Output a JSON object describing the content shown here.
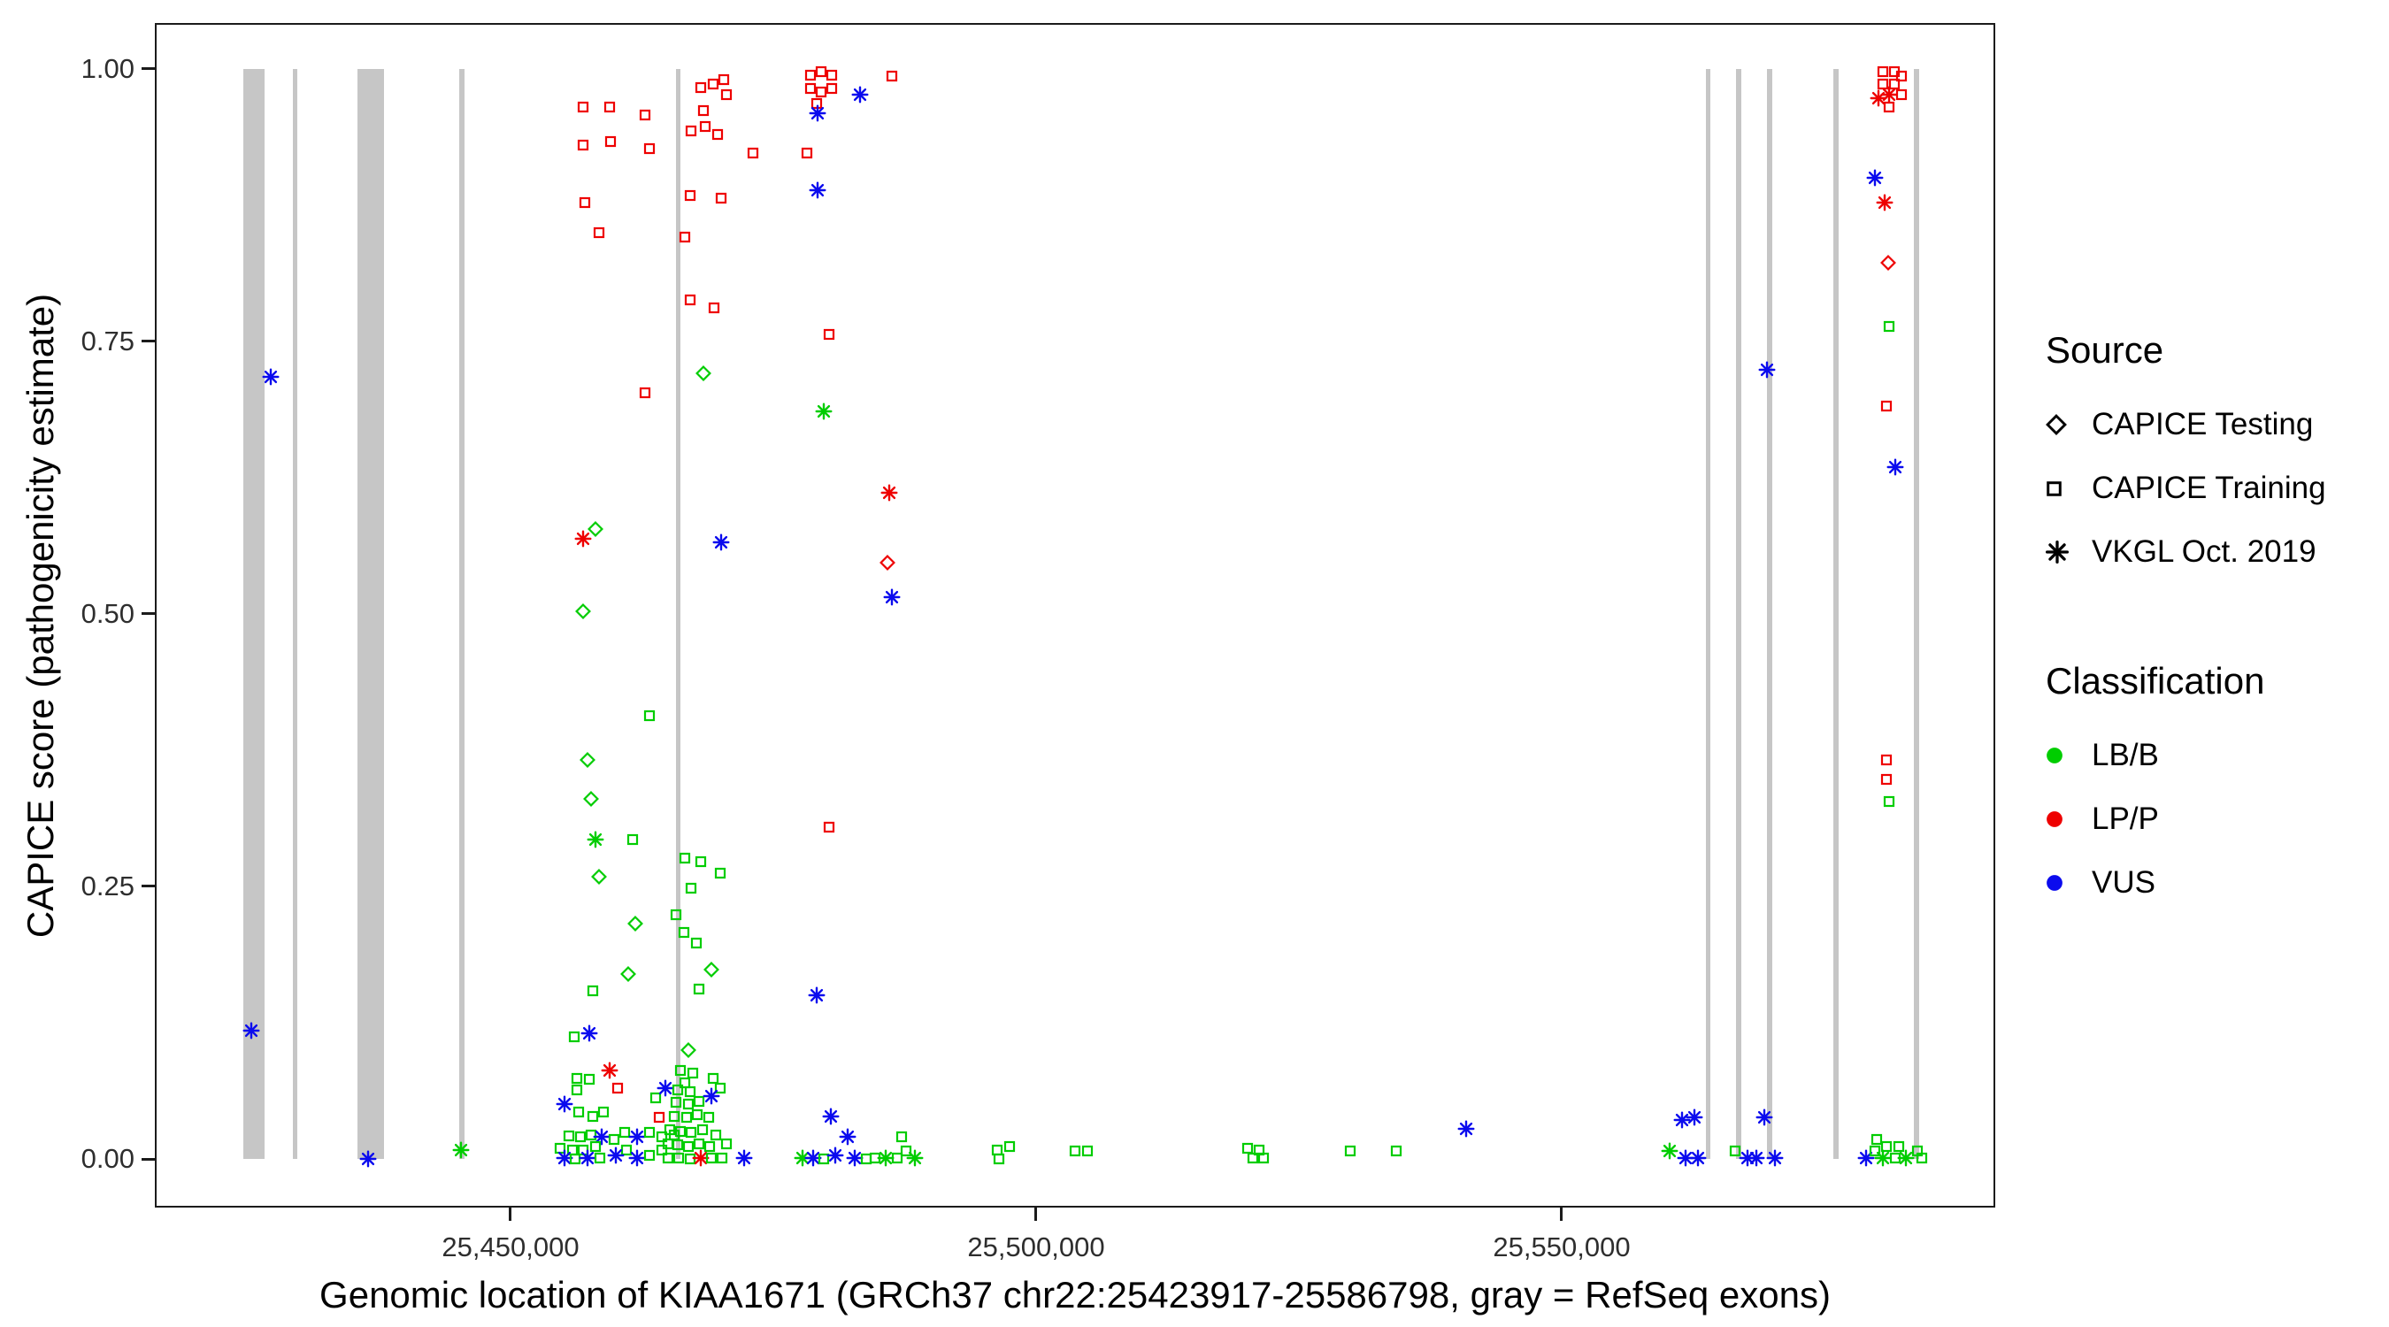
{
  "colors": {
    "g": "#00CD00",
    "r": "#EE0000",
    "b": "#0B0BEE",
    "exon": "#C6C6C6",
    "axis": "#1b1b1b"
  },
  "chart_data": {
    "type": "scatter",
    "title": "",
    "xlabel": "Genomic location of KIAA1671 (GRCh37 chr22:25423917-25586798, gray = RefSeq exons)",
    "ylabel": "CAPICE score (pathogenicity estimate)",
    "xlim": [
      25416162,
      25591246
    ],
    "ylim": [
      -0.0446,
      1.042
    ],
    "x_ticks": [
      {
        "value": 25450000,
        "label": "25,450,000"
      },
      {
        "value": 25500000,
        "label": "25,500,000"
      },
      {
        "value": 25550000,
        "label": "25,550,000"
      }
    ],
    "y_ticks": [
      {
        "value": 0.0,
        "label": "0.00"
      },
      {
        "value": 0.25,
        "label": "0.25"
      },
      {
        "value": 0.5,
        "label": "0.50"
      },
      {
        "value": 0.75,
        "label": "0.75"
      },
      {
        "value": 1.0,
        "label": "1.00"
      }
    ],
    "legend_position": "right",
    "shape_legend": {
      "title": "Source",
      "items": [
        {
          "shape": "diamond",
          "label": "CAPICE Testing"
        },
        {
          "shape": "square",
          "label": "CAPICE Training"
        },
        {
          "shape": "asterisk",
          "label": "VKGL Oct. 2019"
        }
      ]
    },
    "color_legend": {
      "title": "Classification",
      "items": [
        {
          "hex": "#00CD00",
          "label": "LB/B"
        },
        {
          "hex": "#EE0000",
          "label": "LP/P"
        },
        {
          "hex": "#0B0BEE",
          "label": "VUS"
        }
      ]
    },
    "refseq_exons": [
      [
        25424560,
        25426620
      ],
      [
        25429270,
        25429700
      ],
      [
        25435440,
        25437940
      ],
      [
        25445150,
        25445590
      ],
      [
        25465730,
        25466170
      ],
      [
        25563680,
        25564120
      ],
      [
        25566620,
        25567060
      ],
      [
        25569560,
        25570000
      ],
      [
        25575880,
        25576320
      ],
      [
        25583530,
        25583970
      ]
    ],
    "point_format": [
      "genomic_position",
      "capice_score",
      "shape: s=square(CAPICE Training) d=diamond(CAPICE Testing) a=asterisk(VKGL Oct. 2019)",
      "class: g=LB/B r=LP/P b=VUS"
    ],
    "points": [
      [
        25425300,
        0.118,
        "a",
        "b"
      ],
      [
        25427215,
        0.717,
        "a",
        "b"
      ],
      [
        25436476,
        0.0,
        "a",
        "b"
      ],
      [
        25445300,
        0.008,
        "a",
        "g"
      ],
      [
        25456900,
        0.965,
        "s",
        "r"
      ],
      [
        25459400,
        0.965,
        "s",
        "r"
      ],
      [
        25456900,
        0.93,
        "s",
        "r"
      ],
      [
        25459550,
        0.933,
        "s",
        "r"
      ],
      [
        25457050,
        0.877,
        "s",
        "r"
      ],
      [
        25458400,
        0.85,
        "s",
        "r"
      ],
      [
        25462800,
        0.958,
        "s",
        "r"
      ],
      [
        25463230,
        0.927,
        "s",
        "r"
      ],
      [
        25462800,
        0.703,
        "s",
        "r"
      ],
      [
        25467050,
        0.884,
        "s",
        "r"
      ],
      [
        25466600,
        0.846,
        "s",
        "r"
      ],
      [
        25467050,
        0.788,
        "s",
        "r"
      ],
      [
        25469400,
        0.781,
        "s",
        "r"
      ],
      [
        25467200,
        0.943,
        "s",
        "r"
      ],
      [
        25468500,
        0.947,
        "s",
        "r"
      ],
      [
        25469700,
        0.94,
        "s",
        "r"
      ],
      [
        25468100,
        0.983,
        "s",
        "r"
      ],
      [
        25469250,
        0.986,
        "s",
        "r"
      ],
      [
        25470300,
        0.99,
        "s",
        "r"
      ],
      [
        25470580,
        0.976,
        "s",
        "r"
      ],
      [
        25473080,
        0.923,
        "s",
        "r"
      ],
      [
        25470000,
        0.881,
        "s",
        "r"
      ],
      [
        25468380,
        0.962,
        "s",
        "r"
      ],
      [
        25468380,
        0.721,
        "d",
        "g"
      ],
      [
        25479840,
        0.686,
        "a",
        "g"
      ],
      [
        25478520,
        0.994,
        "s",
        "r"
      ],
      [
        25479550,
        0.997,
        "s",
        "r"
      ],
      [
        25480580,
        0.994,
        "s",
        "r"
      ],
      [
        25478520,
        0.982,
        "s",
        "r"
      ],
      [
        25479550,
        0.979,
        "s",
        "r"
      ],
      [
        25480580,
        0.982,
        "s",
        "r"
      ],
      [
        25479100,
        0.968,
        "s",
        "r"
      ],
      [
        25479250,
        0.959,
        "a",
        "b"
      ],
      [
        25483220,
        0.976,
        "a",
        "b"
      ],
      [
        25486310,
        0.993,
        "s",
        "r"
      ],
      [
        25478220,
        0.923,
        "s",
        "r"
      ],
      [
        25479250,
        0.889,
        "a",
        "b"
      ],
      [
        25480280,
        0.756,
        "s",
        "r"
      ],
      [
        25486020,
        0.611,
        "a",
        "r"
      ],
      [
        25485870,
        0.547,
        "d",
        "r"
      ],
      [
        25486310,
        0.515,
        "a",
        "b"
      ],
      [
        25480280,
        0.304,
        "s",
        "r"
      ],
      [
        25479100,
        0.15,
        "a",
        "b"
      ],
      [
        25458090,
        0.578,
        "d",
        "g"
      ],
      [
        25456910,
        0.569,
        "a",
        "r"
      ],
      [
        25470000,
        0.566,
        "a",
        "b"
      ],
      [
        25456910,
        0.502,
        "d",
        "g"
      ],
      [
        25457350,
        0.366,
        "d",
        "g"
      ],
      [
        25457650,
        0.33,
        "d",
        "g"
      ],
      [
        25458090,
        0.293,
        "a",
        "g"
      ],
      [
        25458380,
        0.259,
        "d",
        "g"
      ],
      [
        25461610,
        0.293,
        "s",
        "g"
      ],
      [
        25463230,
        0.407,
        "s",
        "g"
      ],
      [
        25461910,
        0.216,
        "d",
        "g"
      ],
      [
        25461170,
        0.17,
        "d",
        "g"
      ],
      [
        25457790,
        0.154,
        "s",
        "g"
      ],
      [
        25456030,
        0.112,
        "s",
        "g"
      ],
      [
        25457500,
        0.115,
        "a",
        "b"
      ],
      [
        25466610,
        0.276,
        "s",
        "g"
      ],
      [
        25468080,
        0.273,
        "s",
        "g"
      ],
      [
        25467200,
        0.248,
        "s",
        "g"
      ],
      [
        25469990,
        0.262,
        "s",
        "g"
      ],
      [
        25466460,
        0.208,
        "s",
        "g"
      ],
      [
        25467640,
        0.198,
        "s",
        "g"
      ],
      [
        25469110,
        0.174,
        "d",
        "g"
      ],
      [
        25467930,
        0.156,
        "s",
        "g"
      ],
      [
        25466900,
        0.1,
        "d",
        "g"
      ],
      [
        25465730,
        0.224,
        "s",
        "g"
      ],
      [
        25456320,
        0.074,
        "s",
        "g"
      ],
      [
        25457500,
        0.073,
        "s",
        "g"
      ],
      [
        25456320,
        0.063,
        "s",
        "g"
      ],
      [
        25455150,
        0.05,
        "a",
        "b"
      ],
      [
        25456470,
        0.043,
        "s",
        "g"
      ],
      [
        25457790,
        0.039,
        "s",
        "g"
      ],
      [
        25458820,
        0.043,
        "s",
        "g"
      ],
      [
        25455590,
        0.021,
        "s",
        "g"
      ],
      [
        25456620,
        0.02,
        "s",
        "g"
      ],
      [
        25457650,
        0.022,
        "s",
        "g"
      ],
      [
        25458680,
        0.02,
        "a",
        "b"
      ],
      [
        25454710,
        0.01,
        "s",
        "g"
      ],
      [
        25455880,
        0.008,
        "s",
        "g"
      ],
      [
        25456910,
        0.008,
        "s",
        "g"
      ],
      [
        25458090,
        0.011,
        "s",
        "g"
      ],
      [
        25455150,
        0.001,
        "a",
        "b"
      ],
      [
        25456180,
        0.0,
        "s",
        "g"
      ],
      [
        25457350,
        0.001,
        "a",
        "b"
      ],
      [
        25458530,
        0.001,
        "s",
        "g"
      ],
      [
        25459410,
        0.081,
        "a",
        "r"
      ],
      [
        25460150,
        0.065,
        "s",
        "r"
      ],
      [
        25459850,
        0.018,
        "s",
        "g"
      ],
      [
        25460880,
        0.024,
        "s",
        "g"
      ],
      [
        25462060,
        0.02,
        "a",
        "b"
      ],
      [
        25463230,
        0.024,
        "s",
        "g"
      ],
      [
        25461030,
        0.008,
        "s",
        "g"
      ],
      [
        25460000,
        0.003,
        "a",
        "b"
      ],
      [
        25462060,
        0.001,
        "a",
        "b"
      ],
      [
        25463230,
        0.003,
        "s",
        "g"
      ],
      [
        25463820,
        0.056,
        "s",
        "g"
      ],
      [
        25464700,
        0.065,
        "a",
        "b"
      ],
      [
        25464110,
        0.038,
        "s",
        "r"
      ],
      [
        25464410,
        0.02,
        "s",
        "g"
      ],
      [
        25465580,
        0.022,
        "s",
        "g"
      ],
      [
        25464410,
        0.008,
        "s",
        "g"
      ],
      [
        25466170,
        0.081,
        "s",
        "g"
      ],
      [
        25467350,
        0.079,
        "s",
        "g"
      ],
      [
        25466610,
        0.07,
        "s",
        "g"
      ],
      [
        25465880,
        0.063,
        "s",
        "g"
      ],
      [
        25467050,
        0.062,
        "s",
        "g"
      ],
      [
        25465730,
        0.052,
        "s",
        "g"
      ],
      [
        25466900,
        0.05,
        "s",
        "g"
      ],
      [
        25467930,
        0.053,
        "s",
        "g"
      ],
      [
        25465580,
        0.039,
        "s",
        "g"
      ],
      [
        25466760,
        0.038,
        "s",
        "g"
      ],
      [
        25467790,
        0.041,
        "s",
        "g"
      ],
      [
        25468820,
        0.038,
        "s",
        "g"
      ],
      [
        25465140,
        0.027,
        "s",
        "g"
      ],
      [
        25466170,
        0.025,
        "s",
        "g"
      ],
      [
        25467200,
        0.024,
        "s",
        "g"
      ],
      [
        25468230,
        0.027,
        "s",
        "g"
      ],
      [
        25464990,
        0.014,
        "s",
        "g"
      ],
      [
        25465880,
        0.013,
        "s",
        "g"
      ],
      [
        25466900,
        0.011,
        "s",
        "g"
      ],
      [
        25467930,
        0.014,
        "s",
        "g"
      ],
      [
        25468960,
        0.011,
        "s",
        "g"
      ],
      [
        25464990,
        0.001,
        "s",
        "g"
      ],
      [
        25466020,
        0.001,
        "s",
        "g"
      ],
      [
        25467050,
        0.0,
        "s",
        "g"
      ],
      [
        25468080,
        0.001,
        "a",
        "r"
      ],
      [
        25469110,
        0.001,
        "s",
        "g"
      ],
      [
        25470140,
        0.001,
        "s",
        "g"
      ],
      [
        25469550,
        0.022,
        "s",
        "g"
      ],
      [
        25470580,
        0.014,
        "s",
        "g"
      ],
      [
        25472200,
        0.001,
        "a",
        "b"
      ],
      [
        25469990,
        0.065,
        "s",
        "g"
      ],
      [
        25469250,
        0.074,
        "s",
        "g"
      ],
      [
        25469110,
        0.058,
        "a",
        "b"
      ],
      [
        25477780,
        0.001,
        "a",
        "g"
      ],
      [
        25478810,
        0.001,
        "a",
        "b"
      ],
      [
        25479840,
        0.0,
        "s",
        "g"
      ],
      [
        25480870,
        0.003,
        "a",
        "b"
      ],
      [
        25480430,
        0.039,
        "a",
        "b"
      ],
      [
        25482050,
        0.02,
        "a",
        "b"
      ],
      [
        25482780,
        0.001,
        "a",
        "b"
      ],
      [
        25483810,
        0.0,
        "s",
        "g"
      ],
      [
        25484690,
        0.001,
        "s",
        "g"
      ],
      [
        25485720,
        0.001,
        "a",
        "g"
      ],
      [
        25486750,
        0.001,
        "s",
        "g"
      ],
      [
        25487190,
        0.02,
        "s",
        "g"
      ],
      [
        25487630,
        0.007,
        "s",
        "g"
      ],
      [
        25488510,
        0.001,
        "a",
        "g"
      ],
      [
        25496310,
        0.008,
        "s",
        "g"
      ],
      [
        25497490,
        0.011,
        "s",
        "g"
      ],
      [
        25496460,
        0.0,
        "s",
        "g"
      ],
      [
        25503680,
        0.007,
        "s",
        "g"
      ],
      [
        25504850,
        0.007,
        "s",
        "g"
      ],
      [
        25520150,
        0.01,
        "s",
        "g"
      ],
      [
        25521180,
        0.008,
        "s",
        "g"
      ],
      [
        25520590,
        0.001,
        "s",
        "g"
      ],
      [
        25521620,
        0.001,
        "s",
        "g"
      ],
      [
        25529850,
        0.007,
        "s",
        "g"
      ],
      [
        25534260,
        0.007,
        "s",
        "g"
      ],
      [
        25540880,
        0.028,
        "a",
        "b"
      ],
      [
        25560290,
        0.007,
        "a",
        "g"
      ],
      [
        25561760,
        0.001,
        "a",
        "b"
      ],
      [
        25561470,
        0.036,
        "a",
        "b"
      ],
      [
        25562650,
        0.038,
        "a",
        "b"
      ],
      [
        25562940,
        0.001,
        "a",
        "b"
      ],
      [
        25566470,
        0.007,
        "s",
        "g"
      ],
      [
        25567650,
        0.001,
        "a",
        "b"
      ],
      [
        25568530,
        0.001,
        "a",
        "b"
      ],
      [
        25569260,
        0.038,
        "a",
        "b"
      ],
      [
        25569560,
        0.724,
        "a",
        "b"
      ],
      [
        25570290,
        0.001,
        "a",
        "b"
      ],
      [
        25580580,
        0.997,
        "s",
        "r"
      ],
      [
        25581610,
        0.997,
        "s",
        "r"
      ],
      [
        25580580,
        0.986,
        "s",
        "r"
      ],
      [
        25581610,
        0.986,
        "s",
        "r"
      ],
      [
        25582340,
        0.993,
        "s",
        "r"
      ],
      [
        25581160,
        0.976,
        "a",
        "r"
      ],
      [
        25580140,
        0.973,
        "a",
        "r"
      ],
      [
        25582340,
        0.976,
        "s",
        "r"
      ],
      [
        25581160,
        0.965,
        "s",
        "r"
      ],
      [
        25579840,
        0.9,
        "a",
        "b"
      ],
      [
        25580720,
        0.877,
        "a",
        "r"
      ],
      [
        25581020,
        0.822,
        "d",
        "r"
      ],
      [
        25581160,
        0.764,
        "s",
        "g"
      ],
      [
        25580870,
        0.691,
        "s",
        "r"
      ],
      [
        25581750,
        0.635,
        "a",
        "b"
      ],
      [
        25580870,
        0.366,
        "s",
        "r"
      ],
      [
        25580870,
        0.348,
        "s",
        "r"
      ],
      [
        25581160,
        0.328,
        "s",
        "g"
      ],
      [
        25578960,
        0.001,
        "a",
        "b"
      ],
      [
        25579840,
        0.007,
        "s",
        "g"
      ],
      [
        25580870,
        0.011,
        "s",
        "g"
      ],
      [
        25580580,
        0.001,
        "a",
        "g"
      ],
      [
        25581750,
        0.001,
        "s",
        "g"
      ],
      [
        25582780,
        0.001,
        "a",
        "g"
      ],
      [
        25583810,
        0.007,
        "s",
        "g"
      ],
      [
        25584250,
        0.001,
        "s",
        "g"
      ],
      [
        25579990,
        0.018,
        "s",
        "g"
      ],
      [
        25582050,
        0.011,
        "s",
        "g"
      ]
    ]
  }
}
